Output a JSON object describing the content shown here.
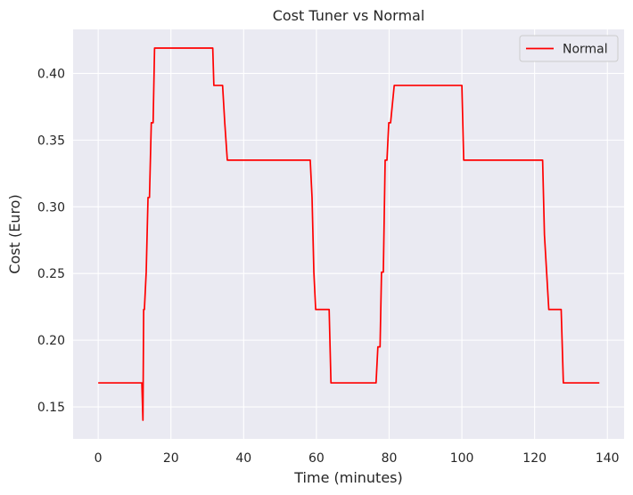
{
  "chart_data": {
    "type": "line",
    "title": "Cost Tuner vs Normal",
    "xlabel": "Time (minutes)",
    "ylabel": "Cost (Euro)",
    "xlim": [
      -6.9,
      144.6
    ],
    "ylim": [
      0.126,
      0.433
    ],
    "xticks": [
      0,
      20,
      40,
      60,
      80,
      100,
      120,
      140
    ],
    "xtick_labels": [
      "0",
      "20",
      "40",
      "60",
      "80",
      "100",
      "120",
      "140"
    ],
    "yticks": [
      0.15,
      0.2,
      0.25,
      0.3,
      0.35,
      0.4
    ],
    "ytick_labels": [
      "0.15",
      "0.20",
      "0.25",
      "0.30",
      "0.35",
      "0.40"
    ],
    "grid": true,
    "legend": {
      "position": "top-right"
    },
    "background": "#eaeaf2",
    "grid_color": "#ffffff",
    "series": [
      {
        "name": "Normal",
        "color": "#ff0000",
        "x": [
          0,
          12.0,
          12.3,
          12.5,
          12.7,
          13.2,
          13.7,
          14.1,
          14.6,
          15.1,
          15.5,
          16.0,
          31.5,
          31.8,
          34.2,
          34.8,
          35.5,
          58.3,
          58.8,
          59.3,
          59.8,
          63.5,
          64.0,
          76.4,
          76.9,
          77.5,
          77.9,
          78.4,
          78.9,
          79.4,
          79.9,
          80.4,
          81.4,
          82.3,
          100.0,
          100.5,
          122.2,
          122.7,
          123.9,
          127.3,
          127.9,
          137.8
        ],
        "y": [
          0.168,
          0.168,
          0.14,
          0.223,
          0.223,
          0.251,
          0.307,
          0.307,
          0.363,
          0.363,
          0.419,
          0.419,
          0.419,
          0.391,
          0.391,
          0.363,
          0.335,
          0.335,
          0.307,
          0.251,
          0.223,
          0.223,
          0.168,
          0.168,
          0.195,
          0.195,
          0.251,
          0.251,
          0.335,
          0.335,
          0.363,
          0.363,
          0.391,
          0.391,
          0.391,
          0.335,
          0.335,
          0.279,
          0.223,
          0.223,
          0.168,
          0.168
        ]
      }
    ]
  }
}
